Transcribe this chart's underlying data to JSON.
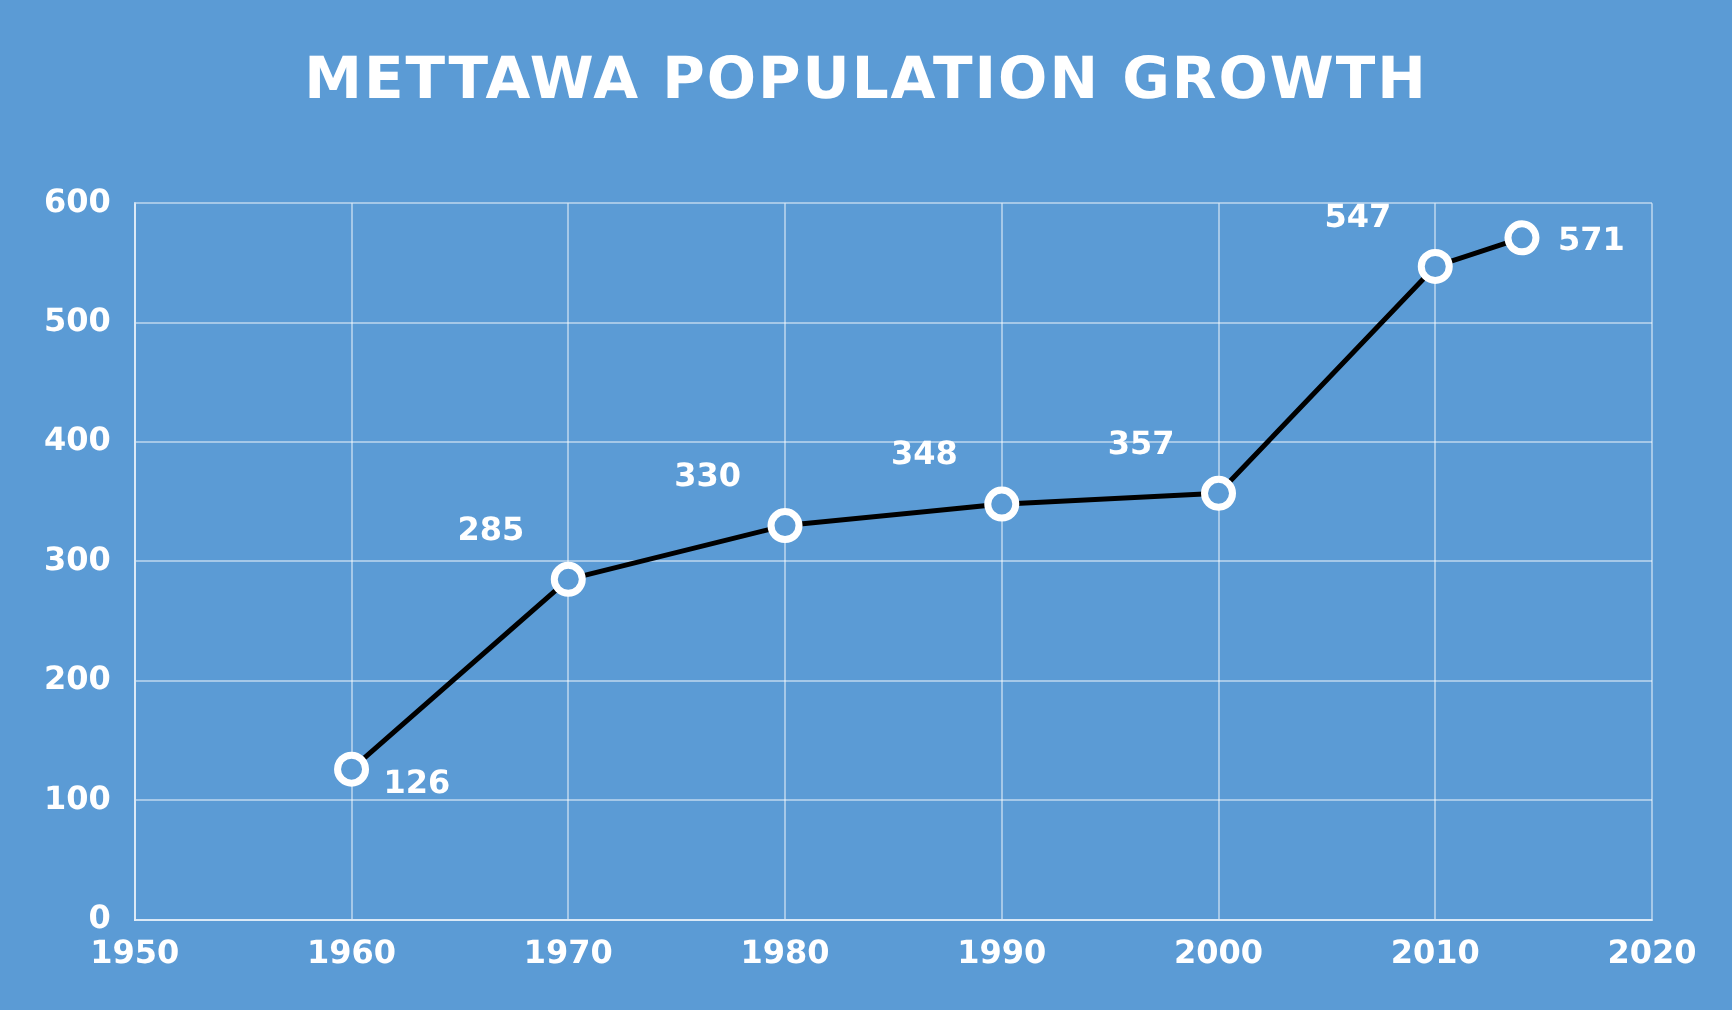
{
  "chart_data": {
    "type": "line",
    "title": "METTAWA POPULATION GROWTH",
    "x": [
      1960,
      1970,
      1980,
      1990,
      2000,
      2010,
      2014
    ],
    "series": [
      {
        "color": "#000000",
        "values": [
          126,
          285,
          330,
          348,
          357,
          547,
          571
        ]
      }
    ],
    "xlim": [
      1950,
      2020
    ],
    "xticks": [
      1950,
      1960,
      1970,
      1980,
      1990,
      2000,
      2010,
      2020
    ],
    "ylim": [
      0,
      600
    ],
    "yticks": [
      0,
      100,
      200,
      300,
      400,
      500,
      600
    ],
    "grid": true,
    "marker": "circle",
    "line_style": "solid",
    "data_labels": true
  }
}
